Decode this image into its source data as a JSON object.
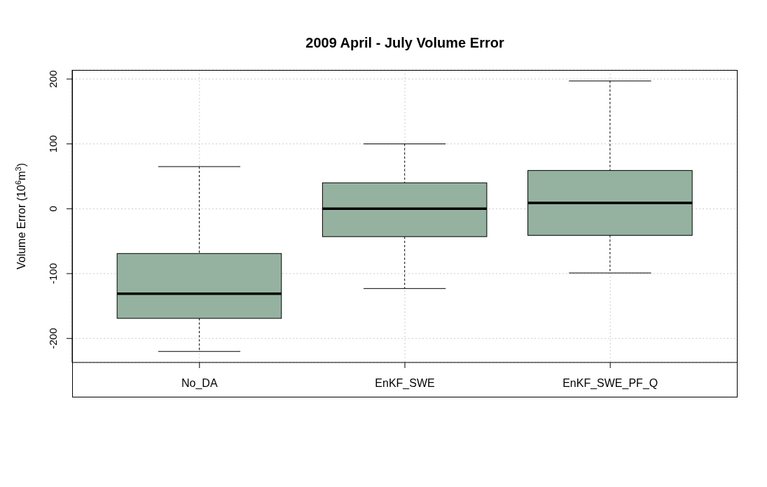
{
  "chart_data": {
    "type": "box",
    "title": "2009 April - July Volume Error",
    "ylabel": "Volume Error (10$^{6}$m$^{3}$)",
    "categories": [
      "No_DA",
      "EnKF_SWE",
      "EnKF_SWE_PF_Q"
    ],
    "color": "#95b1a0",
    "boxes": [
      {
        "low": -220,
        "q1": -169,
        "median": -131,
        "q3": -69,
        "high": 65
      },
      {
        "low": -123,
        "q1": -43,
        "median": 0,
        "q3": 40,
        "high": 100
      },
      {
        "low": -99,
        "q1": -41,
        "median": 9,
        "q3": 59,
        "high": 197
      }
    ],
    "ylim": [
      -237,
      214
    ],
    "yticks": [
      -200,
      -100,
      0,
      100,
      200
    ],
    "grid": true
  }
}
